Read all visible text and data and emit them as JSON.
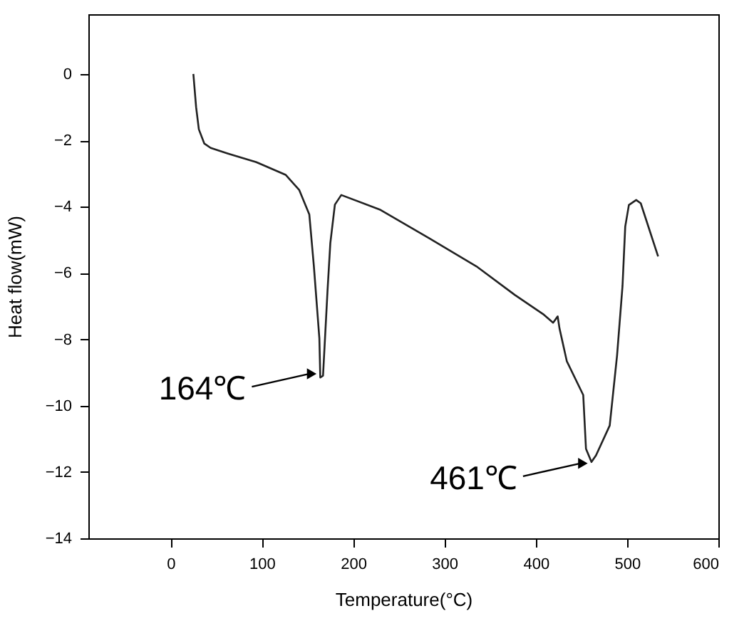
{
  "chart_data": {
    "type": "line",
    "xlabel": "Temperature(°C)",
    "ylabel": "Heat flow(mW)",
    "xlim": [
      -90,
      600
    ],
    "xticks": [
      0,
      100,
      200,
      300,
      400,
      500,
      600
    ],
    "ylim": [
      -14,
      1.8
    ],
    "yticks": [
      -14,
      -12,
      -10,
      -8,
      -6,
      -4,
      -2,
      0
    ],
    "grid": false,
    "marker": "none",
    "line_style": "solid",
    "series": [
      {
        "color": "#222222",
        "x": [
          25,
          28,
          31,
          37,
          44,
          63,
          94,
          126,
          141,
          152,
          157,
          163,
          164,
          167,
          172,
          175,
          180,
          187,
          230,
          283,
          335,
          377,
          408,
          419,
          424,
          426,
          434,
          452,
          455,
          461,
          466,
          481,
          489,
          495,
          498,
          502,
          510,
          515,
          534
        ],
        "values": [
          0,
          -1.0,
          -1.67,
          -2.1,
          -2.23,
          -2.4,
          -2.66,
          -3.04,
          -3.5,
          -4.24,
          -5.8,
          -7.97,
          -9.15,
          -9.1,
          -6.5,
          -5.1,
          -3.94,
          -3.65,
          -4.1,
          -4.95,
          -5.8,
          -6.66,
          -7.24,
          -7.5,
          -7.31,
          -7.67,
          -8.66,
          -9.68,
          -11.3,
          -11.7,
          -11.5,
          -10.6,
          -8.5,
          -6.4,
          -4.6,
          -3.95,
          -3.8,
          -3.9,
          -5.5
        ]
      }
    ],
    "annotations": [
      {
        "text": "164℃",
        "x": 164,
        "y": -9.0
      },
      {
        "text": "461℃",
        "x": 461,
        "y": -11.7
      }
    ]
  }
}
